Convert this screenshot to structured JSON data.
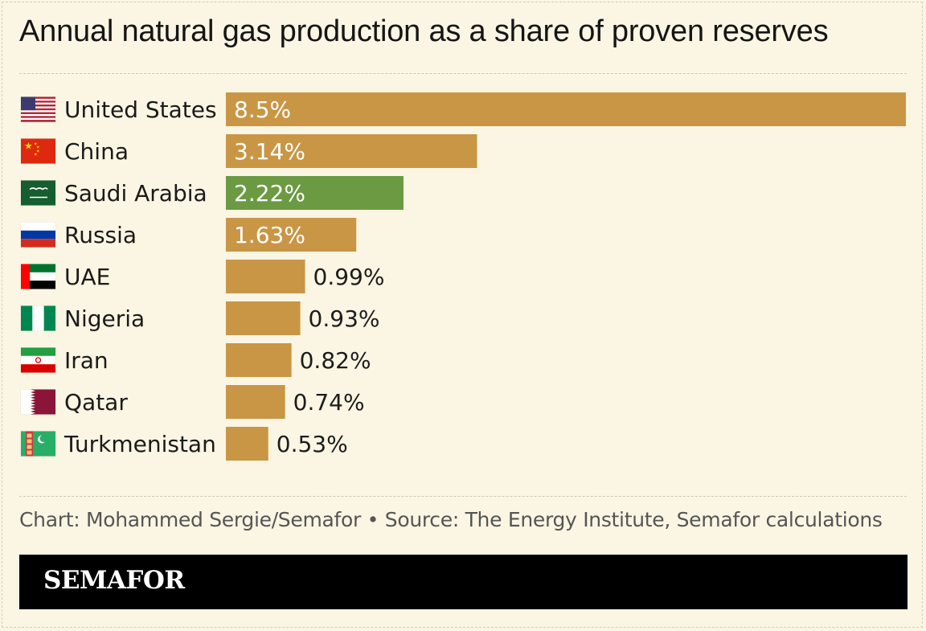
{
  "title": "Annual natural gas production as a share of proven reserves",
  "credit": "Chart: Mohammed Sergie/Semafor • Source: The Energy Institute, Semafor calculations",
  "brand": "SEMAFOR",
  "colors": {
    "background": "#fbf5e3",
    "bar_default": "#c99645",
    "bar_highlight": "#6b9a43",
    "label_on_bar": "#ffffff",
    "label_outside": "#1c1c1c"
  },
  "chart_data": {
    "type": "bar",
    "orientation": "horizontal",
    "categories": [
      "United States",
      "China",
      "Saudi Arabia",
      "Russia",
      "UAE",
      "Nigeria",
      "Iran",
      "Qatar",
      "Turkmenistan"
    ],
    "values": [
      8.5,
      3.14,
      2.22,
      1.63,
      0.99,
      0.93,
      0.82,
      0.74,
      0.53
    ],
    "value_labels": [
      "8.5%",
      "3.14%",
      "2.22%",
      "1.63%",
      "0.99%",
      "0.93%",
      "0.82%",
      "0.74%",
      "0.53%"
    ],
    "flag_icons": [
      "us-flag-icon",
      "china-flag-icon",
      "saudi-arabia-flag-icon",
      "russia-flag-icon",
      "uae-flag-icon",
      "nigeria-flag-icon",
      "iran-flag-icon",
      "qatar-flag-icon",
      "turkmenistan-flag-icon"
    ],
    "highlight": "Saudi Arabia",
    "xlim": [
      0,
      8.5
    ],
    "grid": false,
    "legend": "none"
  }
}
